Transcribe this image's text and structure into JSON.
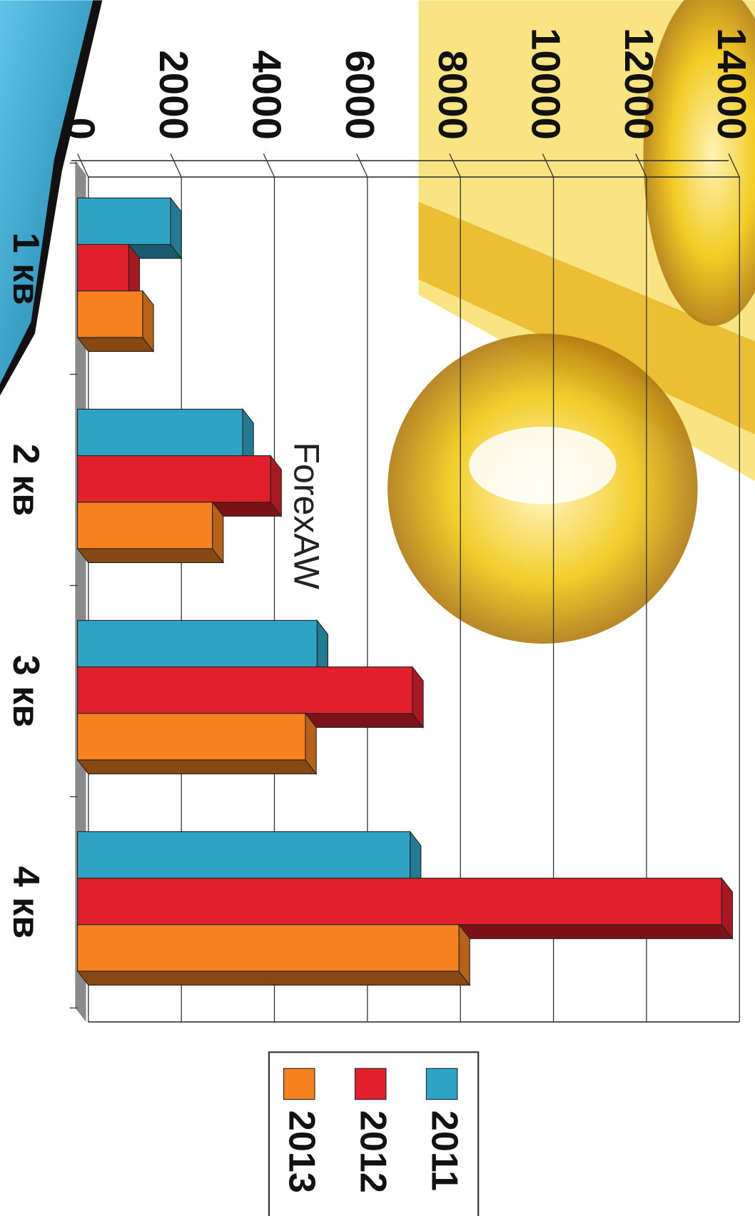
{
  "chart_data": {
    "type": "bar",
    "orientation": "horizontal",
    "three_d": true,
    "rotated": true,
    "watermark": "ForexAW",
    "categories": [
      "1 кв",
      "2 кв",
      "3 кв",
      "4 кв"
    ],
    "series": [
      {
        "name": "2011",
        "color": "#2ea3c4",
        "values": [
          2000,
          3550,
          5150,
          7150
        ]
      },
      {
        "name": "2012",
        "color": "#e0202a",
        "values": [
          1100,
          4150,
          7200,
          13850
        ]
      },
      {
        "name": "2013",
        "color": "#f5821f",
        "values": [
          1400,
          2900,
          4900,
          8200
        ]
      }
    ],
    "ylim": [
      0,
      14000
    ],
    "yticks": [
      0,
      2000,
      4000,
      6000,
      8000,
      10000,
      12000,
      14000
    ],
    "grid": true,
    "legend": "right"
  }
}
